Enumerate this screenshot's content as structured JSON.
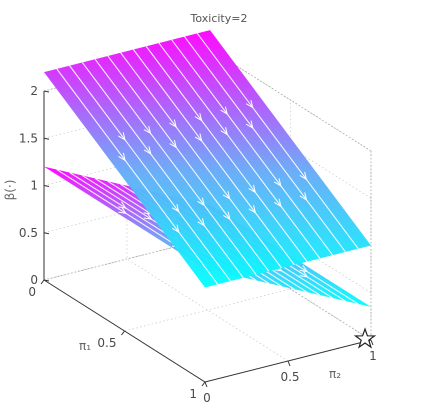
{
  "chart_data": {
    "type": "surface3d",
    "title": "Toxicity=2",
    "xlabel": "π₁",
    "ylabel": "π₂",
    "zlabel": "β(·)",
    "x_ticks": [
      "0",
      "0.5",
      "1"
    ],
    "y_ticks": [
      "0",
      "0.5",
      "1"
    ],
    "z_ticks": [
      "0",
      "0.5",
      "1",
      "1.5",
      "2"
    ],
    "xlim": [
      0,
      1
    ],
    "ylim": [
      0,
      1
    ],
    "zlim": [
      0,
      2
    ],
    "grid": true,
    "colormap": [
      "#00ffff",
      "#ff00ff"
    ],
    "series": [
      {
        "corners": [
          {
            "x": 0,
            "y": 0,
            "z": 1.2
          },
          {
            "x": 1,
            "y": 0,
            "z": 1.2
          },
          {
            "x": 1,
            "y": 1,
            "z": 0.35
          },
          {
            "x": 0,
            "y": 1,
            "z": 0.35
          }
        ]
      },
      {
        "corners": [
          {
            "x": 0,
            "y": 0,
            "z": 2.2
          },
          {
            "x": 1,
            "y": 0,
            "z": 1.0
          },
          {
            "x": 1,
            "y": 1,
            "z": 1.0
          },
          {
            "x": 0,
            "y": 1,
            "z": 2.2
          }
        ]
      }
    ],
    "annotations": [
      {
        "type": "star-marker",
        "x": 1,
        "y": 1,
        "z": 0
      }
    ]
  }
}
